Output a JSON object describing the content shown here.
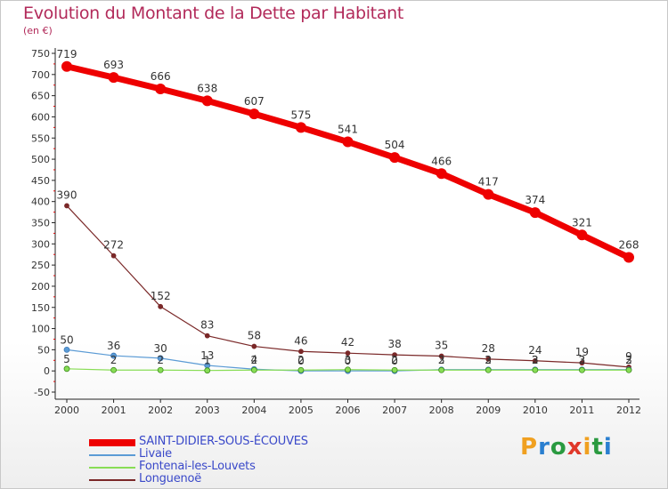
{
  "title": "Evolution du Montant de la Dette par Habitant",
  "subtitle": "(en €)",
  "logo": {
    "text": "Proxiti",
    "colors": [
      "#f0a020",
      "#2a7fd0",
      "#2a9a40",
      "#e0382a",
      "#f0a020",
      "#2a9a40",
      "#2a7fd0"
    ]
  },
  "chart_data": {
    "type": "line",
    "title": "Evolution du Montant de la Dette par Habitant",
    "ylabel": "(en €)",
    "xlabel": "",
    "x": [
      "2000",
      "2001",
      "2002",
      "2003",
      "2004",
      "2005",
      "2006",
      "2007",
      "2008",
      "2009",
      "2010",
      "2011",
      "2012"
    ],
    "ylim": [
      -50,
      750
    ],
    "yticks": [
      "-50",
      "0",
      "50",
      "100",
      "150",
      "200",
      "250",
      "300",
      "350",
      "400",
      "450",
      "500",
      "550",
      "600",
      "650",
      "700",
      "750"
    ],
    "grid": false,
    "legend_position": "bottom-left",
    "series": [
      {
        "name": "SAINT-DIDIER-SOUS-ÉCOUVES",
        "color": "#ee0000",
        "values": [
          719,
          693,
          666,
          638,
          607,
          575,
          541,
          504,
          466,
          417,
          374,
          321,
          268
        ],
        "labels": [
          "719",
          "693",
          "666",
          "638",
          "607",
          "575",
          "541",
          "504",
          "466",
          "417",
          "374",
          "321",
          "268"
        ]
      },
      {
        "name": "Livaie",
        "color": "#5b9bd5",
        "values": [
          50,
          36,
          30,
          13,
          4,
          0,
          0,
          0,
          3,
          3,
          3,
          3,
          3
        ],
        "labels": [
          "50",
          "36",
          "30",
          "13",
          "4",
          "0",
          "0",
          "0",
          "3",
          "3",
          "3",
          "3",
          "3"
        ]
      },
      {
        "name": "Fontenai-les-Louvets",
        "color": "#88dd55",
        "values": [
          5,
          2,
          2,
          1,
          2,
          2,
          3,
          2,
          2,
          2,
          2,
          2,
          2
        ],
        "labels": [
          "5",
          "2",
          "2",
          "1",
          "2",
          "2",
          "3",
          "2",
          "2",
          "2",
          "2",
          "2",
          "2"
        ]
      },
      {
        "name": "Longuenoë",
        "color": "#7a2828",
        "values": [
          390,
          272,
          152,
          83,
          58,
          46,
          42,
          38,
          35,
          28,
          24,
          19,
          9
        ],
        "labels": [
          "390",
          "272",
          "152",
          "83",
          "58",
          "46",
          "42",
          "38",
          "35",
          "28",
          "24",
          "19",
          "9"
        ]
      }
    ]
  }
}
